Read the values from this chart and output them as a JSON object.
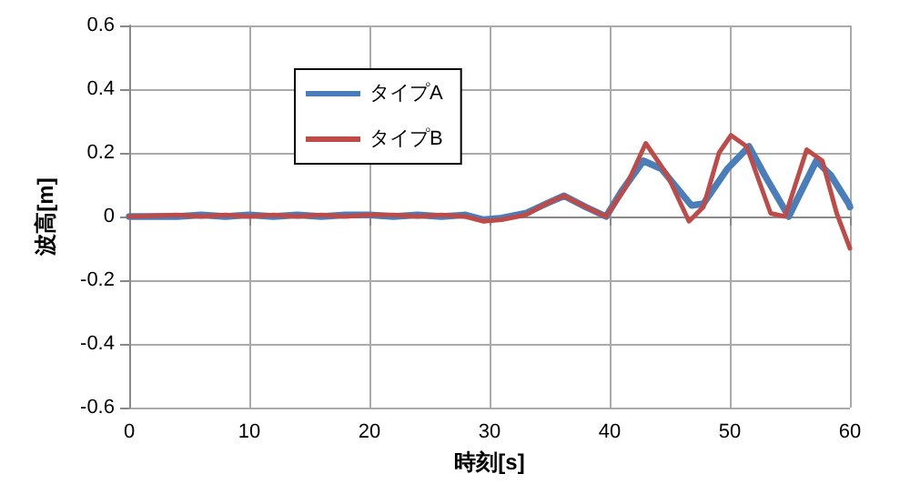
{
  "chart_data": {
    "type": "line",
    "xlabel": "時刻[s]",
    "ylabel": "波高[m]",
    "xlim": [
      0,
      60
    ],
    "xticks": [
      0,
      10,
      20,
      30,
      40,
      50,
      60
    ],
    "ylim": [
      -0.6,
      0.6
    ],
    "yticks": [
      -0.6,
      -0.4,
      -0.2,
      0,
      0.2,
      0.4,
      0.6
    ],
    "grid": true,
    "legend": "top left",
    "marker": "none",
    "line_style": "solid",
    "series": [
      {
        "name": "タイプA",
        "color": "#4a7ebb",
        "x": [
          0,
          4,
          6,
          8,
          10,
          12,
          14,
          16,
          18,
          20,
          22,
          24,
          26,
          28,
          29.5,
          31,
          33,
          34.7,
          36.2,
          38,
          39.7,
          41,
          42.8,
          44.3,
          45.6,
          46.8,
          47.8,
          49.8,
          51.6,
          52.9,
          54.9,
          57.2,
          58.4,
          59.9,
          60
        ],
        "values": [
          0,
          0,
          0.005,
          0,
          0.005,
          0,
          0.005,
          0,
          0.005,
          0.005,
          0,
          0.005,
          0,
          0.005,
          -0.01,
          -0.005,
          0.01,
          0.04,
          0.065,
          0.03,
          0,
          0.08,
          0.175,
          0.15,
          0.09,
          0.035,
          0.04,
          0.15,
          0.22,
          0.13,
          0,
          0.175,
          0.13,
          0.04,
          0.03
        ]
      },
      {
        "name": "タイプB",
        "color": "#be4b48",
        "x": [
          0,
          4,
          6,
          8,
          10,
          12,
          14,
          16,
          18,
          20,
          22,
          24,
          26,
          28,
          29.5,
          31,
          33,
          34.7,
          36.2,
          38,
          39.7,
          41.3,
          43,
          44.8,
          46.6,
          47.8,
          49.1,
          50.1,
          51.4,
          53.4,
          54.6,
          56.4,
          57.7,
          58.9,
          60
        ],
        "values": [
          0,
          0.005,
          0,
          0.005,
          0,
          0.005,
          0,
          0.005,
          0,
          0.005,
          0.005,
          0,
          0.005,
          0,
          -0.015,
          -0.01,
          0.005,
          0.04,
          0.065,
          0.03,
          0,
          0.09,
          0.23,
          0.13,
          -0.015,
          0.03,
          0.2,
          0.255,
          0.22,
          0.01,
          0,
          0.21,
          0.175,
          0.01,
          -0.1
        ]
      }
    ]
  }
}
